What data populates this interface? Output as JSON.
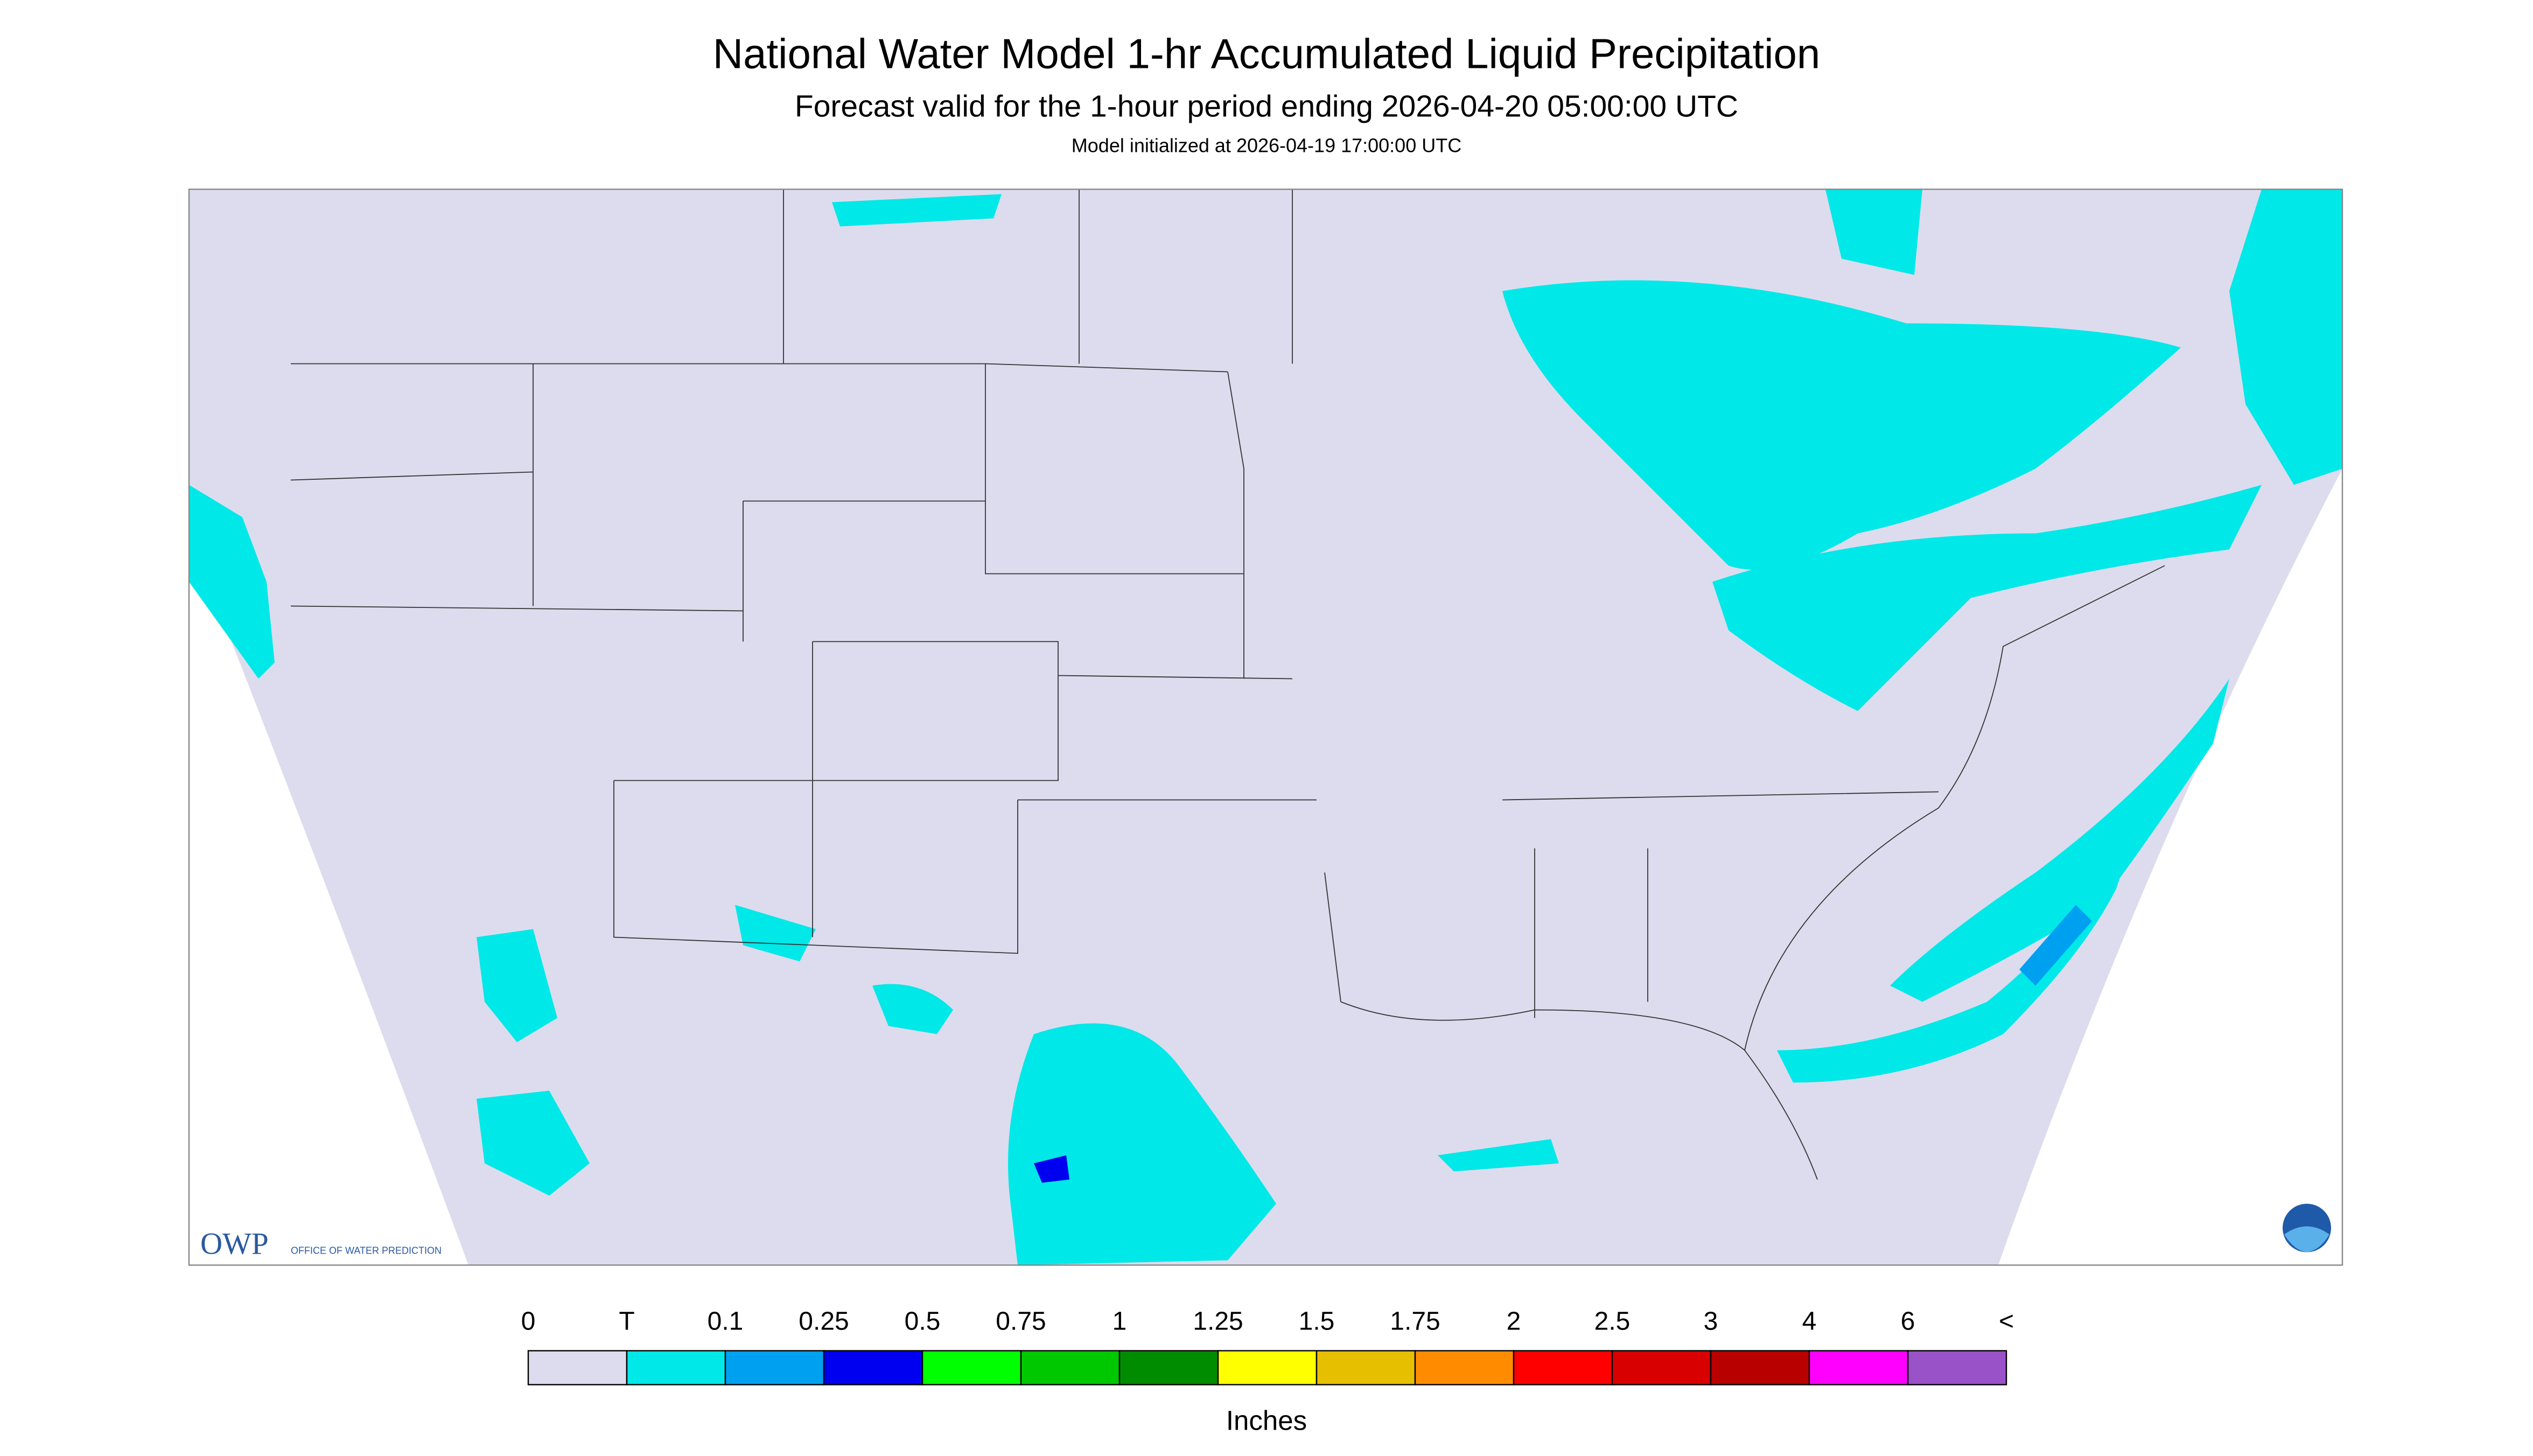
{
  "header": {
    "title": "National Water Model 1-hr Accumulated Liquid Precipitation",
    "subtitle": "Forecast valid for the 1-hour period ending 2026-04-20 05:00:00 UTC",
    "initialized": "Model initialized at 2026-04-19 17:00:00 UTC"
  },
  "legend": {
    "labels": [
      "0",
      "T",
      "0.1",
      "0.25",
      "0.5",
      "0.75",
      "1",
      "1.25",
      "1.5",
      "1.75",
      "2",
      "2.5",
      "3",
      "4",
      "6",
      "<"
    ],
    "colors": [
      "#dcdcee",
      "#00e8e8",
      "#00a0f0",
      "#0000f0",
      "#00ff00",
      "#00c800",
      "#008c00",
      "#ffff00",
      "#e6c000",
      "#ff8c00",
      "#ff0000",
      "#d80000",
      "#b80000",
      "#ff00ff",
      "#9a52c8"
    ],
    "unit": "Inches"
  },
  "logo": {
    "acronym": "OWP",
    "text": "OFFICE OF WATER PREDICTION"
  }
}
